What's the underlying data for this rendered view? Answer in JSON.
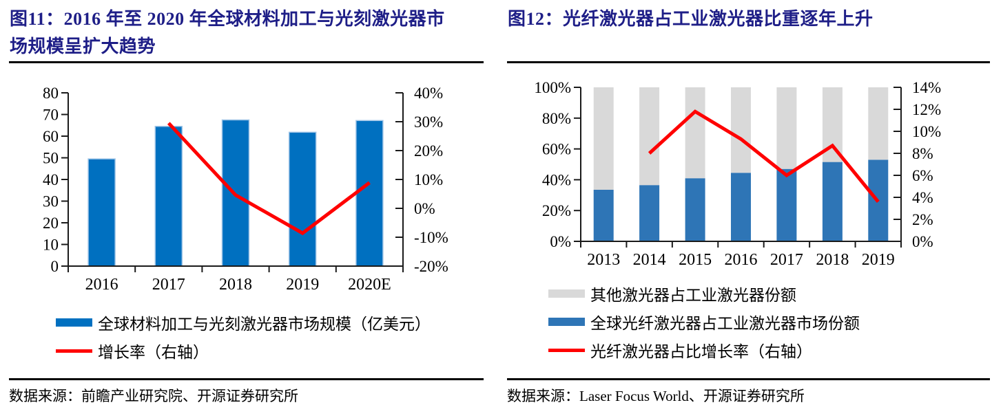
{
  "page": {
    "background": "#FFFFFF",
    "title_color": "#1E1E87",
    "axis_color": "#1A1A1A"
  },
  "fig11": {
    "title": "图11：2016 年至 2020 年全球材料加工与光刻激光器市场规模呈扩大趋势",
    "legend": [
      {
        "label": "全球材料加工与光刻激光器市场规模（亿美元）",
        "swatch": "bar",
        "color": "#0070C0"
      },
      {
        "label": "增长率（右轴）",
        "swatch": "line",
        "color": "#FF0000"
      }
    ],
    "source": "数据来源：前瞻产业研究院、开源证券研究所"
  },
  "fig12": {
    "title": "图12：光纤激光器占工业激光器比重逐年上升",
    "legend": [
      {
        "label": "其他激光器占工业激光器份额",
        "swatch": "bar",
        "color": "#D9D9D9"
      },
      {
        "label": "全球光纤激光器占工业激光器市场份额",
        "swatch": "bar",
        "color": "#2E75B6"
      },
      {
        "label": "光纤激光器占比增长率（右轴）",
        "swatch": "line",
        "color": "#FF0000"
      }
    ],
    "source": "数据来源：Laser Focus World、开源证券研究所"
  },
  "chart_data": [
    {
      "type": "bar+line",
      "title": "图11：2016 年至 2020 年全球材料加工与光刻激光器市场规模呈扩大趋势",
      "categories": [
        "2016",
        "2017",
        "2018",
        "2019",
        "2020E"
      ],
      "stacked": false,
      "grid": false,
      "legend_position": "bottom",
      "series": [
        {
          "name": "全球材料加工与光刻激光器市场规模（亿美元）",
          "type": "bar",
          "axis": "left",
          "color": "#0070C0",
          "border": "#9DC3E6",
          "values": [
            49.5,
            64.5,
            67.5,
            61.8,
            67.2
          ]
        },
        {
          "name": "增长率（右轴）",
          "type": "line",
          "axis": "right",
          "color": "#FF0000",
          "values": [
            null,
            29.5,
            4.6,
            -8.6,
            8.9
          ]
        }
      ],
      "left_axis": {
        "min": 0,
        "max": 80,
        "step": 10,
        "tick_labels": [
          "0",
          "10",
          "20",
          "30",
          "40",
          "50",
          "60",
          "70",
          "80"
        ]
      },
      "right_axis": {
        "min": -20,
        "max": 40,
        "step": 10,
        "tick_labels": [
          "-20%",
          "-10%",
          "0%",
          "10%",
          "20%",
          "30%",
          "40%"
        ]
      }
    },
    {
      "type": "stacked-bar+line",
      "title": "图12：光纤激光器占工业激光器比重逐年上升",
      "categories": [
        "2013",
        "2014",
        "2015",
        "2016",
        "2017",
        "2018",
        "2019"
      ],
      "stacked": true,
      "grid": false,
      "legend_position": "bottom",
      "series": [
        {
          "name": "全球光纤激光器占工业激光器市场份额",
          "type": "bar",
          "axis": "left",
          "color": "#2E75B6",
          "values": [
            33.5,
            36.5,
            41.0,
            44.5,
            47.0,
            51.5,
            53.0
          ]
        },
        {
          "name": "其他激光器占工业激光器份额",
          "type": "bar",
          "axis": "left",
          "color": "#D9D9D9",
          "values": [
            66.5,
            63.5,
            59.0,
            55.5,
            53.0,
            48.5,
            47.0
          ]
        },
        {
          "name": "光纤激光器占比增长率（右轴）",
          "type": "line",
          "axis": "right",
          "color": "#FF0000",
          "values": [
            null,
            8.0,
            11.8,
            9.3,
            6.0,
            8.7,
            3.6
          ]
        }
      ],
      "left_axis": {
        "min": 0,
        "max": 100,
        "step": 20,
        "tick_labels": [
          "0%",
          "20%",
          "40%",
          "60%",
          "80%",
          "100%"
        ]
      },
      "right_axis": {
        "min": 0,
        "max": 14,
        "step": 2,
        "tick_labels": [
          "0%",
          "2%",
          "4%",
          "6%",
          "8%",
          "10%",
          "12%",
          "14%"
        ]
      }
    }
  ]
}
